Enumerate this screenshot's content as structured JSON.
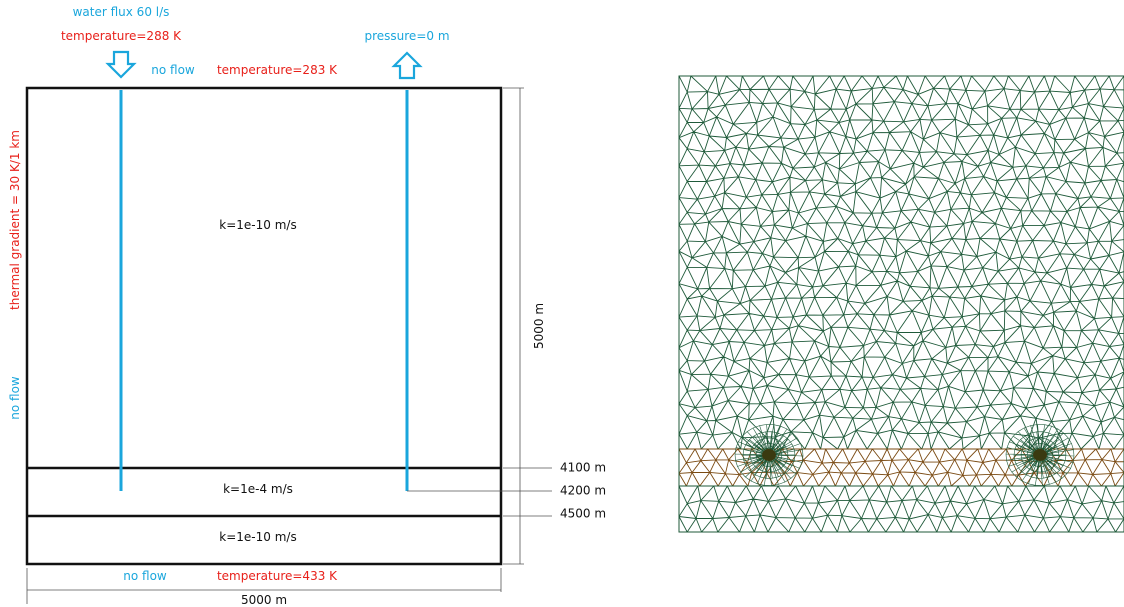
{
  "diagram": {
    "boundary_conditions": {
      "injection_flux": "water flux 60 l/s",
      "injection_temperature": "temperature=288 K",
      "top_no_flow": "no flow",
      "top_temperature": "temperature=283 K",
      "extraction_pressure": "pressure=0 m",
      "left_gradient": "thermal gradient = 30 K/1 km",
      "left_no_flow": "no flow",
      "bottom_no_flow": "no flow",
      "bottom_temperature": "temperature=433 K"
    },
    "layers": {
      "upper": "k=1e-10 m/s",
      "aquifer": "k=1e-4 m/s",
      "lower": "k=1e-10 m/s"
    },
    "dimensions": {
      "height": "5000 m",
      "width": "5000 m",
      "depth_aquifer_top": "4100 m",
      "depth_well_bottom": "4200 m",
      "depth_aquifer_bottom": "4500 m"
    },
    "colors": {
      "temperature": "#e8201a",
      "hydraulic": "#1aa6dc",
      "outline": "#111111",
      "mesh_edge": "#1f5a3a",
      "aquifer_mesh_edge": "#7a4a12"
    },
    "icons": {
      "injection_arrow": "arrow-down-icon",
      "extraction_arrow": "arrow-up-icon"
    }
  }
}
